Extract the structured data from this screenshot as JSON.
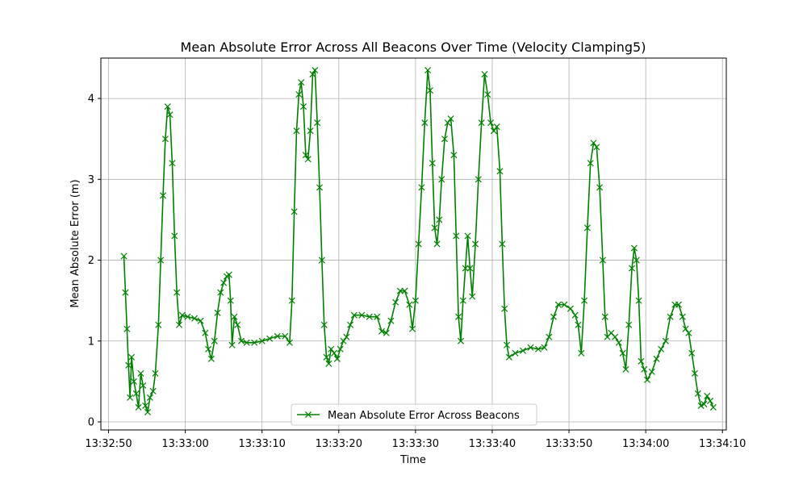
{
  "chart_data": {
    "type": "line",
    "title": "Mean Absolute Error Across All Beacons Over Time (Velocity Clamping5)",
    "xlabel": "Time",
    "ylabel": "Mean Absolute Error (m)",
    "x_ticks": [
      "13:32:50",
      "13:33:00",
      "13:33:10",
      "13:33:20",
      "13:33:30",
      "13:33:40",
      "13:33:50",
      "13:34:00",
      "13:34:10"
    ],
    "y_ticks": [
      "0",
      "1",
      "2",
      "3",
      "4"
    ],
    "xlim": [
      "13:32:49",
      "13:34:10.5"
    ],
    "ylim": [
      -0.1,
      4.5
    ],
    "grid": true,
    "legend_position": "bottom-center",
    "color": "#008000",
    "marker": "x",
    "series": [
      {
        "name": "Mean Absolute Error Across Beacons",
        "points": [
          [
            "13:32:52.0",
            2.05
          ],
          [
            "13:32:52.2",
            1.6
          ],
          [
            "13:32:52.4",
            1.15
          ],
          [
            "13:32:52.6",
            0.7
          ],
          [
            "13:32:52.8",
            0.3
          ],
          [
            "13:32:53.0",
            0.8
          ],
          [
            "13:32:53.3",
            0.5
          ],
          [
            "13:32:53.6",
            0.35
          ],
          [
            "13:32:53.9",
            0.18
          ],
          [
            "13:32:54.2",
            0.6
          ],
          [
            "13:32:54.5",
            0.45
          ],
          [
            "13:32:54.8",
            0.2
          ],
          [
            "13:32:55.1",
            0.12
          ],
          [
            "13:32:55.4",
            0.3
          ],
          [
            "13:32:55.8",
            0.38
          ],
          [
            "13:32:56.1",
            0.6
          ],
          [
            "13:32:56.5",
            1.2
          ],
          [
            "13:32:56.8",
            2.0
          ],
          [
            "13:32:57.1",
            2.8
          ],
          [
            "13:32:57.4",
            3.5
          ],
          [
            "13:32:57.7",
            3.9
          ],
          [
            "13:32:58.0",
            3.8
          ],
          [
            "13:32:58.3",
            3.2
          ],
          [
            "13:32:58.6",
            2.3
          ],
          [
            "13:32:58.9",
            1.6
          ],
          [
            "13:32:59.2",
            1.2
          ],
          [
            "13:32:59.6",
            1.32
          ],
          [
            "13:33:00.3",
            1.3
          ],
          [
            "13:33:01.2",
            1.28
          ],
          [
            "13:33:02.0",
            1.25
          ],
          [
            "13:33:02.6",
            1.1
          ],
          [
            "13:33:03.0",
            0.9
          ],
          [
            "13:33:03.4",
            0.78
          ],
          [
            "13:33:03.8",
            1.0
          ],
          [
            "13:33:04.2",
            1.35
          ],
          [
            "13:33:04.6",
            1.6
          ],
          [
            "13:33:05.0",
            1.72
          ],
          [
            "13:33:05.4",
            1.8
          ],
          [
            "13:33:05.7",
            1.82
          ],
          [
            "13:33:05.9",
            1.5
          ],
          [
            "13:33:06.1",
            0.95
          ],
          [
            "13:33:06.4",
            1.3
          ],
          [
            "13:33:06.8",
            1.2
          ],
          [
            "13:33:07.3",
            1.0
          ],
          [
            "13:33:08.0",
            0.98
          ],
          [
            "13:33:09.0",
            0.98
          ],
          [
            "13:33:10.0",
            1.0
          ],
          [
            "13:33:11.0",
            1.03
          ],
          [
            "13:33:12.0",
            1.06
          ],
          [
            "13:33:13.0",
            1.06
          ],
          [
            "13:33:13.6",
            0.98
          ],
          [
            "13:33:13.9",
            1.5
          ],
          [
            "13:33:14.2",
            2.6
          ],
          [
            "13:33:14.5",
            3.6
          ],
          [
            "13:33:14.8",
            4.05
          ],
          [
            "13:33:15.1",
            4.2
          ],
          [
            "13:33:15.4",
            3.9
          ],
          [
            "13:33:15.7",
            3.3
          ],
          [
            "13:33:16.0",
            3.25
          ],
          [
            "13:33:16.3",
            3.6
          ],
          [
            "13:33:16.6",
            4.3
          ],
          [
            "13:33:16.9",
            4.35
          ],
          [
            "13:33:17.2",
            3.7
          ],
          [
            "13:33:17.5",
            2.9
          ],
          [
            "13:33:17.8",
            2.0
          ],
          [
            "13:33:18.1",
            1.2
          ],
          [
            "13:33:18.4",
            0.8
          ],
          [
            "13:33:18.7",
            0.72
          ],
          [
            "13:33:19.0",
            0.9
          ],
          [
            "13:33:19.4",
            0.85
          ],
          [
            "13:33:19.8",
            0.78
          ],
          [
            "13:33:20.2",
            0.9
          ],
          [
            "13:33:20.6",
            1.0
          ],
          [
            "13:33:21.0",
            1.05
          ],
          [
            "13:33:21.5",
            1.2
          ],
          [
            "13:33:22.0",
            1.32
          ],
          [
            "13:33:23.0",
            1.32
          ],
          [
            "13:33:24.0",
            1.3
          ],
          [
            "13:33:25.0",
            1.3
          ],
          [
            "13:33:25.6",
            1.12
          ],
          [
            "13:33:26.2",
            1.1
          ],
          [
            "13:33:26.8",
            1.25
          ],
          [
            "13:33:27.4",
            1.48
          ],
          [
            "13:33:28.0",
            1.62
          ],
          [
            "13:33:28.6",
            1.62
          ],
          [
            "13:33:29.2",
            1.45
          ],
          [
            "13:33:29.6",
            1.15
          ],
          [
            "13:33:30.0",
            1.5
          ],
          [
            "13:33:30.4",
            2.2
          ],
          [
            "13:33:30.8",
            2.9
          ],
          [
            "13:33:31.2",
            3.7
          ],
          [
            "13:33:31.6",
            4.35
          ],
          [
            "13:33:31.9",
            4.1
          ],
          [
            "13:33:32.2",
            3.2
          ],
          [
            "13:33:32.5",
            2.4
          ],
          [
            "13:33:32.8",
            2.2
          ],
          [
            "13:33:33.1",
            2.5
          ],
          [
            "13:33:33.4",
            3.0
          ],
          [
            "13:33:33.8",
            3.5
          ],
          [
            "13:33:34.2",
            3.7
          ],
          [
            "13:33:34.6",
            3.75
          ],
          [
            "13:33:35.0",
            3.3
          ],
          [
            "13:33:35.3",
            2.3
          ],
          [
            "13:33:35.6",
            1.3
          ],
          [
            "13:33:35.9",
            1.0
          ],
          [
            "13:33:36.2",
            1.5
          ],
          [
            "13:33:36.5",
            1.9
          ],
          [
            "13:33:36.8",
            2.3
          ],
          [
            "13:33:37.1",
            1.9
          ],
          [
            "13:33:37.4",
            1.55
          ],
          [
            "13:33:37.8",
            2.2
          ],
          [
            "13:33:38.2",
            3.0
          ],
          [
            "13:33:38.6",
            3.7
          ],
          [
            "13:33:39.0",
            4.3
          ],
          [
            "13:33:39.4",
            4.05
          ],
          [
            "13:33:39.8",
            3.7
          ],
          [
            "13:33:40.2",
            3.6
          ],
          [
            "13:33:40.6",
            3.65
          ],
          [
            "13:33:41.0",
            3.1
          ],
          [
            "13:33:41.3",
            2.2
          ],
          [
            "13:33:41.6",
            1.4
          ],
          [
            "13:33:41.9",
            0.95
          ],
          [
            "13:33:42.2",
            0.8
          ],
          [
            "13:33:43.0",
            0.85
          ],
          [
            "13:33:44.0",
            0.88
          ],
          [
            "13:33:45.0",
            0.92
          ],
          [
            "13:33:46.0",
            0.9
          ],
          [
            "13:33:46.8",
            0.92
          ],
          [
            "13:33:47.4",
            1.05
          ],
          [
            "13:33:48.0",
            1.3
          ],
          [
            "13:33:48.6",
            1.45
          ],
          [
            "13:33:49.4",
            1.45
          ],
          [
            "13:33:50.2",
            1.4
          ],
          [
            "13:33:50.8",
            1.32
          ],
          [
            "13:33:51.2",
            1.2
          ],
          [
            "13:33:51.6",
            0.85
          ],
          [
            "13:33:52.0",
            1.5
          ],
          [
            "13:33:52.4",
            2.4
          ],
          [
            "13:33:52.8",
            3.2
          ],
          [
            "13:33:53.2",
            3.45
          ],
          [
            "13:33:53.6",
            3.4
          ],
          [
            "13:33:54.0",
            2.9
          ],
          [
            "13:33:54.4",
            2.0
          ],
          [
            "13:33:54.7",
            1.3
          ],
          [
            "13:33:55.0",
            1.05
          ],
          [
            "13:33:55.5",
            1.1
          ],
          [
            "13:33:56.0",
            1.05
          ],
          [
            "13:33:56.5",
            0.98
          ],
          [
            "13:33:57.0",
            0.85
          ],
          [
            "13:33:57.4",
            0.65
          ],
          [
            "13:33:57.8",
            1.2
          ],
          [
            "13:33:58.2",
            1.9
          ],
          [
            "13:33:58.5",
            2.15
          ],
          [
            "13:33:58.8",
            2.0
          ],
          [
            "13:33:59.1",
            1.5
          ],
          [
            "13:33:59.4",
            0.75
          ],
          [
            "13:33:59.8",
            0.65
          ],
          [
            "13:34:00.2",
            0.52
          ],
          [
            "13:34:00.8",
            0.62
          ],
          [
            "13:34:01.4",
            0.78
          ],
          [
            "13:34:02.0",
            0.9
          ],
          [
            "13:34:02.6",
            1.0
          ],
          [
            "13:34:03.2",
            1.3
          ],
          [
            "13:34:03.8",
            1.45
          ],
          [
            "13:34:04.3",
            1.45
          ],
          [
            "13:34:04.8",
            1.3
          ],
          [
            "13:34:05.2",
            1.15
          ],
          [
            "13:34:05.6",
            1.1
          ],
          [
            "13:34:06.0",
            0.85
          ],
          [
            "13:34:06.4",
            0.6
          ],
          [
            "13:34:06.8",
            0.35
          ],
          [
            "13:34:07.2",
            0.2
          ],
          [
            "13:34:07.6",
            0.22
          ],
          [
            "13:34:08.0",
            0.32
          ],
          [
            "13:34:08.4",
            0.26
          ],
          [
            "13:34:08.8",
            0.18
          ]
        ]
      }
    ]
  }
}
